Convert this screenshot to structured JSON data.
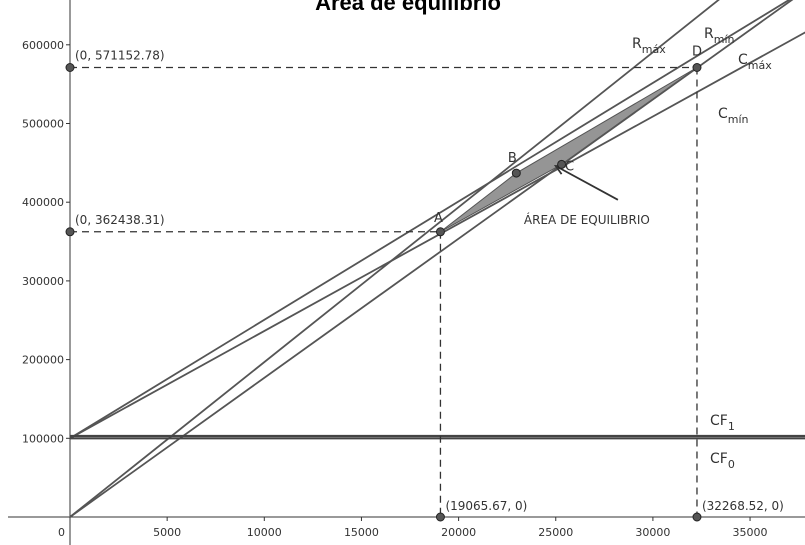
{
  "chart_data": {
    "type": "line",
    "title": "Área de equilibrio",
    "xlabel": "",
    "ylabel": "",
    "xlim": [
      -1500,
      37000
    ],
    "ylim": [
      -6000,
      670000
    ],
    "grid": false,
    "x_ticks": [
      0,
      5000,
      10000,
      15000,
      20000,
      25000,
      30000,
      35000
    ],
    "x_tick_labels": [
      "0",
      "5000",
      "10000",
      "15000",
      "20000",
      "25000",
      "30000",
      "35000"
    ],
    "y_ticks": [
      100000,
      200000,
      300000,
      400000,
      500000,
      600000
    ],
    "y_tick_labels": [
      "100000",
      "200000",
      "300000",
      "400000",
      "500000",
      "600000"
    ],
    "series": [
      {
        "name": "R",
        "sub": "máx",
        "points": [
          [
            0,
            0
          ],
          [
            38000,
            748000
          ]
        ]
      },
      {
        "name": "R",
        "sub": "mín",
        "points": [
          [
            0,
            0
          ],
          [
            38000,
            672000
          ]
        ]
      },
      {
        "name": "C",
        "sub": "máx",
        "points": [
          [
            0,
            100000
          ],
          [
            38000,
            672000
          ]
        ]
      },
      {
        "name": "C",
        "sub": "mín",
        "points": [
          [
            0,
            100000
          ],
          [
            38000,
            618000
          ]
        ]
      },
      {
        "name": "CF",
        "sub": "1",
        "points": [
          [
            0,
            103000
          ],
          [
            38000,
            103000
          ]
        ]
      },
      {
        "name": "CF",
        "sub": "0",
        "points": [
          [
            0,
            100000
          ],
          [
            38000,
            100000
          ]
        ]
      }
    ],
    "points": [
      {
        "name": "A",
        "x": 19065.67,
        "y": 362438.31
      },
      {
        "name": "B",
        "x": 22970,
        "y": 437000
      },
      {
        "name": "C",
        "x": 25300,
        "y": 448000
      },
      {
        "name": "D",
        "x": 32268.52,
        "y": 571152.78
      }
    ],
    "point_labels": {
      "y_upper": "(0, 571152.78)",
      "y_lower": "(0, 362438.31)",
      "x_lower": "(19065.67, 0)",
      "x_upper": "(32268.52, 0)"
    },
    "area_polygon": [
      [
        19065.67,
        362438.31
      ],
      [
        22970,
        437000
      ],
      [
        32268.52,
        571152.78
      ],
      [
        25300,
        448000
      ]
    ],
    "annotation": {
      "text": "ÁREA DE EQUILIBRIO",
      "from": [
        28200,
        403000
      ],
      "to": [
        25000,
        446000
      ]
    }
  }
}
